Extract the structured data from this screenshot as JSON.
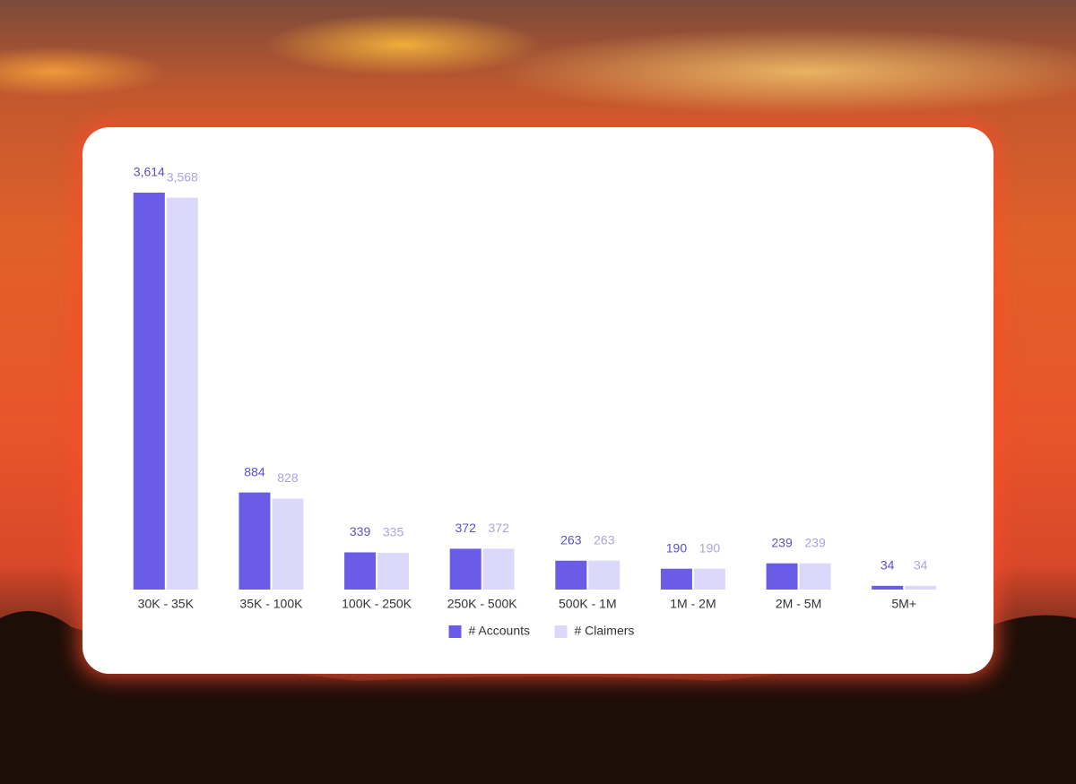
{
  "chart_data": {
    "type": "bar",
    "categories": [
      "30K - 35K",
      "35K - 100K",
      "100K - 250K",
      "250K - 500K",
      "500K - 1M",
      "1M - 2M",
      "2M - 5M",
      "5M+"
    ],
    "series": [
      {
        "name": "# Accounts",
        "color": "#6b5ce7",
        "label_color": "#5b50c8",
        "values": [
          3614,
          884,
          339,
          372,
          263,
          190,
          239,
          34
        ],
        "value_labels": [
          "3,614",
          "884",
          "339",
          "372",
          "263",
          "190",
          "239",
          "34"
        ]
      },
      {
        "name": "# Claimers",
        "color": "#dcd8fb",
        "label_color": "#aaa4de",
        "values": [
          3568,
          828,
          335,
          372,
          263,
          190,
          239,
          34
        ],
        "value_labels": [
          "3,568",
          "828",
          "335",
          "372",
          "263",
          "190",
          "239",
          "34"
        ]
      }
    ],
    "legend": "bottom"
  }
}
